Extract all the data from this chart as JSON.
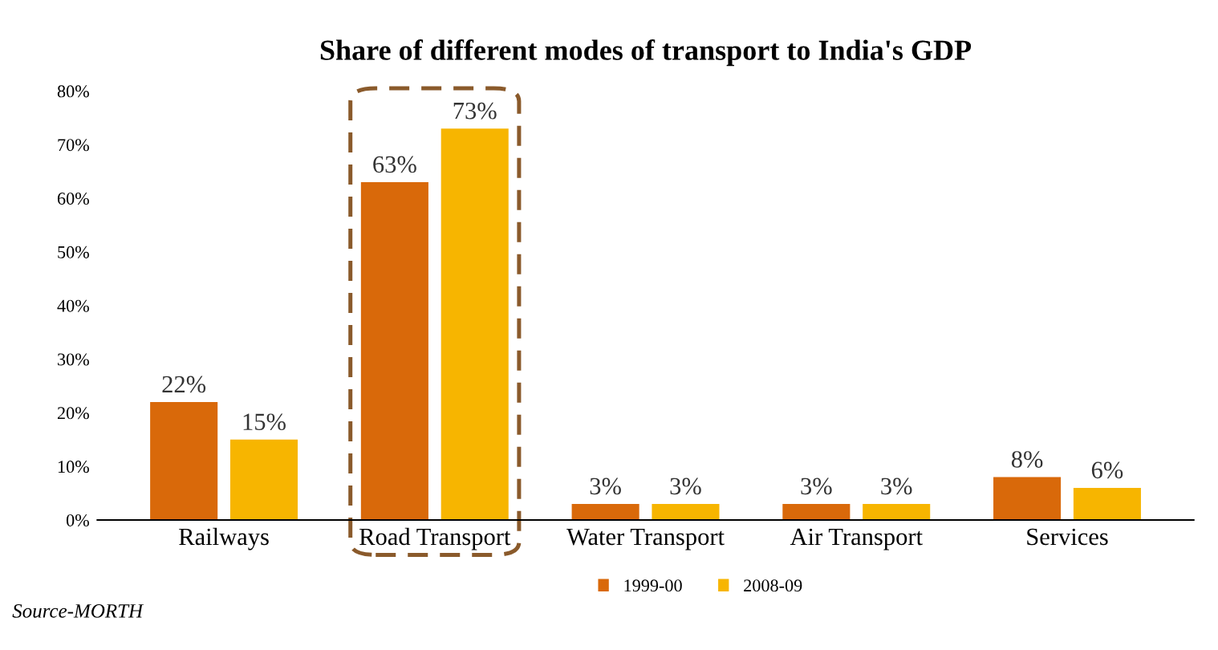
{
  "chart_data": {
    "type": "bar",
    "title": "Share of different modes of transport to India's GDP",
    "categories": [
      "Railways",
      "Road Transport",
      "Water Transport",
      "Air Transport",
      "Services"
    ],
    "series": [
      {
        "name": "1999-00",
        "color": "#d9690a",
        "values": [
          22,
          63,
          3,
          3,
          8
        ],
        "value_labels": [
          "22%",
          "63%",
          "3%",
          "3%",
          "8%"
        ]
      },
      {
        "name": "2008-09",
        "color": "#f7b500",
        "values": [
          15,
          73,
          3,
          3,
          6
        ],
        "value_labels": [
          "15%",
          "73%",
          "3%",
          "3%",
          "6%"
        ]
      }
    ],
    "ylim": [
      0,
      80
    ],
    "yticks": [
      {
        "value": 0,
        "label": "0%"
      },
      {
        "value": 10,
        "label": "10%"
      },
      {
        "value": 20,
        "label": "20%"
      },
      {
        "value": 30,
        "label": "30%"
      },
      {
        "value": 40,
        "label": "40%"
      },
      {
        "value": 50,
        "label": "50%"
      },
      {
        "value": 60,
        "label": "60%"
      },
      {
        "value": 70,
        "label": "70%"
      },
      {
        "value": 80,
        "label": "80%"
      }
    ],
    "grid": false,
    "legend": "bottom",
    "annotations": [
      "Source-MORTH"
    ]
  }
}
